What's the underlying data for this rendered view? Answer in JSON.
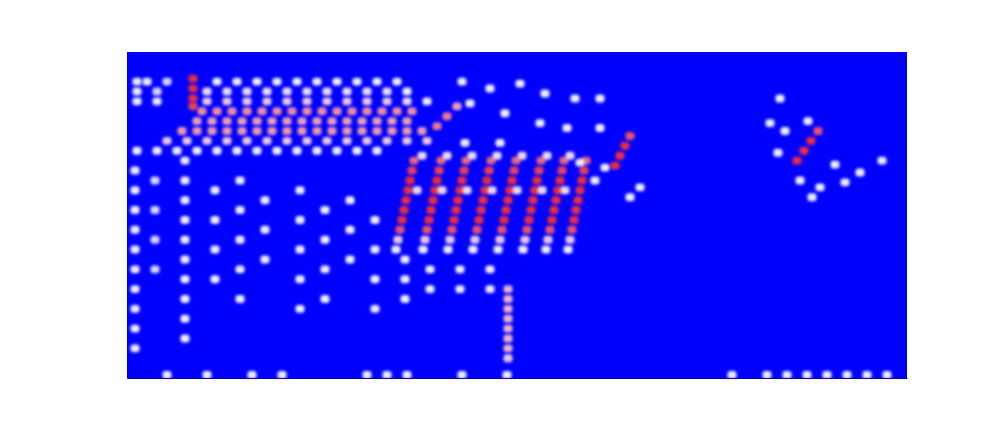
{
  "chart_data": {
    "type": "heatmap",
    "xlim": [
      0,
      78
    ],
    "ylim": [
      0,
      33
    ],
    "zlim": [
      0,
      1
    ],
    "tick_labels": false,
    "cells": [
      [
        1,
        30,
        0.5
      ],
      [
        2,
        30,
        0.5
      ],
      [
        4,
        30,
        0.45
      ],
      [
        9,
        30,
        0.5
      ],
      [
        11,
        30,
        0.5
      ],
      [
        13,
        30,
        0.5
      ],
      [
        15,
        30,
        0.5
      ],
      [
        17,
        30,
        0.5
      ],
      [
        19,
        30,
        0.5
      ],
      [
        21,
        30,
        0.5
      ],
      [
        23,
        30,
        0.5
      ],
      [
        25,
        30,
        0.5
      ],
      [
        27,
        30,
        0.5
      ],
      [
        1,
        29,
        0.5
      ],
      [
        3,
        29,
        0.45
      ],
      [
        8,
        29,
        0.55
      ],
      [
        10,
        29,
        0.55
      ],
      [
        12,
        29,
        0.55
      ],
      [
        14,
        29,
        0.55
      ],
      [
        16,
        29,
        0.55
      ],
      [
        18,
        29,
        0.55
      ],
      [
        20,
        29,
        0.55
      ],
      [
        22,
        29,
        0.55
      ],
      [
        24,
        29,
        0.55
      ],
      [
        26,
        29,
        0.55
      ],
      [
        28,
        29,
        0.5
      ],
      [
        1,
        28,
        0.5
      ],
      [
        3,
        28,
        0.5
      ],
      [
        8,
        28,
        0.6
      ],
      [
        10,
        28,
        0.6
      ],
      [
        12,
        28,
        0.6
      ],
      [
        14,
        28,
        0.6
      ],
      [
        16,
        28,
        0.6
      ],
      [
        18,
        28,
        0.6
      ],
      [
        20,
        28,
        0.6
      ],
      [
        22,
        28,
        0.6
      ],
      [
        24,
        28,
        0.6
      ],
      [
        26,
        28,
        0.6
      ],
      [
        28,
        28,
        0.55
      ],
      [
        30,
        28,
        0.5
      ],
      [
        6.6,
        30.3,
        1
      ],
      [
        6.6,
        29.3,
        1
      ],
      [
        6.6,
        28.3,
        1
      ],
      [
        6.6,
        27.5,
        0.95
      ],
      [
        7.5,
        27,
        0.75
      ],
      [
        9,
        27,
        0.75
      ],
      [
        10.5,
        27,
        0.75
      ],
      [
        12,
        27,
        0.75
      ],
      [
        13.5,
        27,
        0.75
      ],
      [
        15,
        27,
        0.75
      ],
      [
        16.5,
        27,
        0.75
      ],
      [
        18,
        27,
        0.75
      ],
      [
        19.5,
        27,
        0.75
      ],
      [
        21,
        27,
        0.75
      ],
      [
        22.5,
        27,
        0.75
      ],
      [
        24,
        27,
        0.75
      ],
      [
        25.5,
        27,
        0.75
      ],
      [
        27,
        27,
        0.75
      ],
      [
        28.5,
        27,
        0.75
      ],
      [
        7,
        26,
        0.7
      ],
      [
        8.5,
        26,
        0.7
      ],
      [
        10,
        26,
        0.7
      ],
      [
        11.5,
        26,
        0.7
      ],
      [
        13,
        26,
        0.7
      ],
      [
        14.5,
        26,
        0.7
      ],
      [
        16,
        26,
        0.7
      ],
      [
        17.5,
        26,
        0.7
      ],
      [
        19,
        26,
        0.7
      ],
      [
        20.5,
        26,
        0.7
      ],
      [
        22,
        26,
        0.7
      ],
      [
        23.5,
        26,
        0.7
      ],
      [
        25,
        26,
        0.7
      ],
      [
        26.5,
        26,
        0.7
      ],
      [
        28,
        26,
        0.7
      ],
      [
        5.5,
        25,
        0.72
      ],
      [
        7,
        25,
        0.72
      ],
      [
        8.5,
        25,
        0.72
      ],
      [
        10,
        25,
        0.72
      ],
      [
        11.5,
        25,
        0.72
      ],
      [
        13,
        25,
        0.72
      ],
      [
        14.5,
        25,
        0.72
      ],
      [
        16,
        25,
        0.72
      ],
      [
        17.5,
        25,
        0.72
      ],
      [
        19,
        25,
        0.72
      ],
      [
        20.5,
        25,
        0.72
      ],
      [
        22,
        25,
        0.72
      ],
      [
        23.5,
        25,
        0.72
      ],
      [
        25,
        25,
        0.72
      ],
      [
        26.5,
        25,
        0.72
      ],
      [
        28,
        25,
        0.72
      ],
      [
        29.5,
        25,
        0.72
      ],
      [
        4,
        24,
        0.6
      ],
      [
        6,
        24,
        0.6
      ],
      [
        8,
        24,
        0.6
      ],
      [
        10,
        24,
        0.6
      ],
      [
        12,
        24,
        0.6
      ],
      [
        14,
        24,
        0.6
      ],
      [
        16,
        24,
        0.6
      ],
      [
        18,
        24,
        0.6
      ],
      [
        20,
        24,
        0.6
      ],
      [
        22,
        24,
        0.6
      ],
      [
        24,
        24,
        0.6
      ],
      [
        26,
        24,
        0.6
      ],
      [
        28,
        24,
        0.6
      ],
      [
        30,
        24,
        0.6
      ],
      [
        1,
        23,
        0.5
      ],
      [
        3,
        23,
        0.5
      ],
      [
        5,
        23,
        0.5
      ],
      [
        7,
        23,
        0.5
      ],
      [
        9,
        23,
        0.5
      ],
      [
        11,
        23,
        0.5
      ],
      [
        13,
        23,
        0.5
      ],
      [
        15,
        23,
        0.5
      ],
      [
        17,
        23,
        0.5
      ],
      [
        19,
        23,
        0.5
      ],
      [
        21,
        23,
        0.5
      ],
      [
        23,
        23,
        0.5
      ],
      [
        25,
        23,
        0.5
      ],
      [
        31,
        25.5,
        0.8
      ],
      [
        32,
        26.5,
        0.8
      ],
      [
        33,
        27.5,
        0.7
      ],
      [
        26.9,
        13,
        0.5
      ],
      [
        27.1,
        14,
        0.6
      ],
      [
        27.3,
        15,
        0.9
      ],
      [
        27.5,
        16,
        1
      ],
      [
        27.7,
        17,
        1
      ],
      [
        27.9,
        18,
        1
      ],
      [
        28.1,
        19,
        1
      ],
      [
        28.3,
        20,
        1
      ],
      [
        28.5,
        21,
        0.95
      ],
      [
        28.7,
        22,
        0.85
      ],
      [
        29.6,
        13,
        0.5
      ],
      [
        29.8,
        14,
        0.6
      ],
      [
        30,
        15,
        0.9
      ],
      [
        30.2,
        16,
        1
      ],
      [
        30.4,
        17,
        1
      ],
      [
        30.6,
        18,
        1
      ],
      [
        30.8,
        19,
        1
      ],
      [
        31,
        20,
        1
      ],
      [
        31.2,
        21,
        0.95
      ],
      [
        31.4,
        22,
        0.85
      ],
      [
        32.1,
        13,
        0.5
      ],
      [
        32.3,
        14,
        0.6
      ],
      [
        32.5,
        15,
        0.9
      ],
      [
        32.7,
        16,
        1
      ],
      [
        32.9,
        17,
        1
      ],
      [
        33.1,
        18,
        1
      ],
      [
        33.3,
        19,
        1
      ],
      [
        33.5,
        20,
        1
      ],
      [
        33.7,
        21,
        0.95
      ],
      [
        33.9,
        22,
        0.85
      ],
      [
        34.6,
        13,
        0.5
      ],
      [
        34.8,
        14,
        0.6
      ],
      [
        35,
        15,
        0.9
      ],
      [
        35.2,
        16,
        1
      ],
      [
        35.4,
        17,
        1
      ],
      [
        35.6,
        18,
        1
      ],
      [
        35.8,
        19,
        1
      ],
      [
        36,
        20,
        1
      ],
      [
        36.2,
        21,
        0.95
      ],
      [
        36.4,
        22,
        0.85
      ],
      [
        37.1,
        13,
        0.5
      ],
      [
        37.3,
        14,
        0.6
      ],
      [
        37.5,
        15,
        0.9
      ],
      [
        37.7,
        16,
        1
      ],
      [
        37.9,
        17,
        1
      ],
      [
        38.1,
        18,
        1
      ],
      [
        38.3,
        19,
        1
      ],
      [
        38.5,
        20,
        1
      ],
      [
        38.7,
        21,
        0.95
      ],
      [
        38.9,
        22,
        0.85
      ],
      [
        39.6,
        13,
        0.5
      ],
      [
        39.8,
        14,
        0.6
      ],
      [
        40,
        15,
        0.9
      ],
      [
        40.2,
        16,
        1
      ],
      [
        40.4,
        17,
        1
      ],
      [
        40.6,
        18,
        1
      ],
      [
        40.8,
        19,
        1
      ],
      [
        41,
        20,
        1
      ],
      [
        41.2,
        21,
        0.95
      ],
      [
        41.4,
        22,
        0.85
      ],
      [
        41.9,
        13,
        0.5
      ],
      [
        42.1,
        14,
        0.6
      ],
      [
        42.3,
        15,
        0.9
      ],
      [
        42.5,
        16,
        1
      ],
      [
        42.7,
        17,
        1
      ],
      [
        42.9,
        18,
        1
      ],
      [
        43.1,
        19,
        1
      ],
      [
        43.3,
        20,
        1
      ],
      [
        43.5,
        21,
        0.95
      ],
      [
        43.7,
        22,
        0.85
      ],
      [
        44.1,
        13,
        0.5
      ],
      [
        44.3,
        14,
        0.6
      ],
      [
        44.5,
        15,
        0.9
      ],
      [
        44.7,
        16,
        1
      ],
      [
        44.9,
        17,
        1
      ],
      [
        45.1,
        18,
        1
      ],
      [
        45.3,
        19,
        1
      ],
      [
        45.5,
        20,
        1
      ],
      [
        45.7,
        21,
        0.95
      ],
      [
        45.9,
        22,
        0.85
      ],
      [
        29,
        19,
        0.55
      ],
      [
        31.5,
        19,
        0.55
      ],
      [
        34,
        19,
        0.55
      ],
      [
        36.5,
        19,
        0.55
      ],
      [
        39,
        19,
        0.55
      ],
      [
        41.5,
        19,
        0.55
      ],
      [
        43.8,
        19,
        0.55
      ],
      [
        29.5,
        22.5,
        0.55
      ],
      [
        32,
        22.5,
        0.55
      ],
      [
        34.5,
        22.5,
        0.55
      ],
      [
        37,
        22.5,
        0.55
      ],
      [
        39.5,
        22.5,
        0.55
      ],
      [
        42,
        22.5,
        0.55
      ],
      [
        44.3,
        22.5,
        0.55
      ],
      [
        48.8,
        21.5,
        1
      ],
      [
        49.3,
        22.5,
        1
      ],
      [
        49.8,
        23.5,
        1
      ],
      [
        50.3,
        24.5,
        0.9
      ],
      [
        67,
        22,
        1
      ],
      [
        67.7,
        23,
        1
      ],
      [
        68.4,
        24,
        1
      ],
      [
        69.1,
        25,
        0.9
      ],
      [
        65.3,
        28.3,
        0.5
      ],
      [
        64.3,
        25.8,
        0.5
      ],
      [
        65.8,
        25,
        0.5
      ],
      [
        68.1,
        26,
        0.5
      ],
      [
        65.1,
        22.8,
        0.5
      ],
      [
        67.3,
        20,
        0.5
      ],
      [
        69.3,
        19.3,
        0.5
      ],
      [
        68.5,
        18.3,
        0.5
      ],
      [
        71.8,
        19.8,
        0.5
      ],
      [
        73.3,
        20.8,
        0.5
      ],
      [
        75.5,
        22,
        0.5
      ],
      [
        70.8,
        21.6,
        0.5
      ],
      [
        38.1,
        9,
        0.65
      ],
      [
        38.1,
        8,
        0.65
      ],
      [
        38.1,
        7,
        0.65
      ],
      [
        38.1,
        6,
        0.65
      ],
      [
        38.1,
        5,
        0.65
      ],
      [
        38.1,
        4,
        0.65
      ],
      [
        38.1,
        3,
        0.65
      ],
      [
        38.1,
        2,
        0.6
      ],
      [
        33.5,
        30,
        0.5
      ],
      [
        36.3,
        29.3,
        0.5
      ],
      [
        39.3,
        29.8,
        0.5
      ],
      [
        41.8,
        28.8,
        0.5
      ],
      [
        44.8,
        28.3,
        0.5
      ],
      [
        47.3,
        28.3,
        0.5
      ],
      [
        34.3,
        27.8,
        0.5
      ],
      [
        37.8,
        26.8,
        0.5
      ],
      [
        41.3,
        25.8,
        0.5
      ],
      [
        44,
        25.3,
        0.5
      ],
      [
        47.3,
        25.3,
        0.5
      ],
      [
        33.8,
        23.8,
        0.5
      ],
      [
        37.3,
        23.8,
        0.5
      ],
      [
        45.3,
        21.8,
        0.5
      ],
      [
        47.8,
        21.3,
        0.5
      ],
      [
        51.3,
        19.3,
        0.5
      ],
      [
        50.3,
        18.3,
        0.5
      ],
      [
        46.8,
        20,
        0.5
      ],
      [
        0.8,
        21,
        0.5
      ],
      [
        0.8,
        19,
        0.5
      ],
      [
        0.8,
        17,
        0.5
      ],
      [
        0.8,
        15,
        0.5
      ],
      [
        0.8,
        13,
        0.5
      ],
      [
        0.8,
        11,
        0.5
      ],
      [
        0.8,
        9,
        0.5
      ],
      [
        0.8,
        7,
        0.5
      ],
      [
        0.8,
        5,
        0.5
      ],
      [
        0.8,
        3,
        0.5
      ],
      [
        5.8,
        22,
        0.5
      ],
      [
        5.8,
        20,
        0.5
      ],
      [
        5.8,
        18,
        0.5
      ],
      [
        5.8,
        16,
        0.5
      ],
      [
        5.8,
        14,
        0.5
      ],
      [
        5.8,
        12,
        0.5
      ],
      [
        5.8,
        10,
        0.5
      ],
      [
        5.8,
        8,
        0.5
      ],
      [
        5.8,
        6,
        0.5
      ],
      [
        5.8,
        4,
        0.5
      ],
      [
        2.8,
        20,
        0.45
      ],
      [
        2.8,
        17,
        0.45
      ],
      [
        2.8,
        14,
        0.45
      ],
      [
        2.8,
        11,
        0.45
      ],
      [
        8.8,
        19,
        0.5
      ],
      [
        8.8,
        16,
        0.5
      ],
      [
        8.8,
        13,
        0.5
      ],
      [
        8.8,
        10,
        0.5
      ],
      [
        11.3,
        20,
        0.5
      ],
      [
        11.3,
        17,
        0.5
      ],
      [
        11.3,
        14,
        0.5
      ],
      [
        11.3,
        11,
        0.5
      ],
      [
        11.3,
        8,
        0.5
      ],
      [
        13.8,
        18,
        0.5
      ],
      [
        13.8,
        15,
        0.5
      ],
      [
        13.8,
        12,
        0.5
      ],
      [
        17.3,
        19,
        0.5
      ],
      [
        17.3,
        16,
        0.5
      ],
      [
        17.3,
        13,
        0.5
      ],
      [
        17.3,
        10,
        0.5
      ],
      [
        17.3,
        7,
        0.5
      ],
      [
        19.8,
        17,
        0.5
      ],
      [
        19.8,
        14,
        0.5
      ],
      [
        19.8,
        11,
        0.5
      ],
      [
        19.8,
        8,
        0.5
      ],
      [
        22.3,
        18,
        0.5
      ],
      [
        22.3,
        15,
        0.5
      ],
      [
        22.3,
        12,
        0.5
      ],
      [
        24.8,
        16,
        0.5
      ],
      [
        24.8,
        13,
        0.5
      ],
      [
        24.8,
        10,
        0.5
      ],
      [
        24.8,
        7,
        0.5
      ],
      [
        27.8,
        12,
        0.5
      ],
      [
        27.8,
        10,
        0.5
      ],
      [
        27.8,
        8,
        0.5
      ],
      [
        30.3,
        11,
        0.5
      ],
      [
        30.3,
        9,
        0.5
      ],
      [
        33.3,
        11,
        0.5
      ],
      [
        33.3,
        9,
        0.5
      ],
      [
        36.3,
        11,
        0.5
      ],
      [
        36.3,
        9,
        0.5
      ],
      [
        4,
        0.3,
        0.5
      ],
      [
        8,
        0.3,
        0.5
      ],
      [
        12.5,
        0.3,
        0.5
      ],
      [
        15.5,
        0.3,
        0.5
      ],
      [
        24,
        0.3,
        0.5
      ],
      [
        26,
        0.3,
        0.5
      ],
      [
        28,
        0.3,
        0.5
      ],
      [
        33.5,
        0.3,
        0.5
      ],
      [
        38,
        0.3,
        0.5
      ],
      [
        60.5,
        0.3,
        0.5
      ],
      [
        64,
        0.3,
        0.5
      ],
      [
        66,
        0.3,
        0.5
      ],
      [
        68,
        0.3,
        0.5
      ],
      [
        70,
        0.3,
        0.5
      ],
      [
        72,
        0.3,
        0.5
      ],
      [
        74,
        0.3,
        0.5
      ],
      [
        76,
        0.3,
        0.5
      ]
    ]
  }
}
